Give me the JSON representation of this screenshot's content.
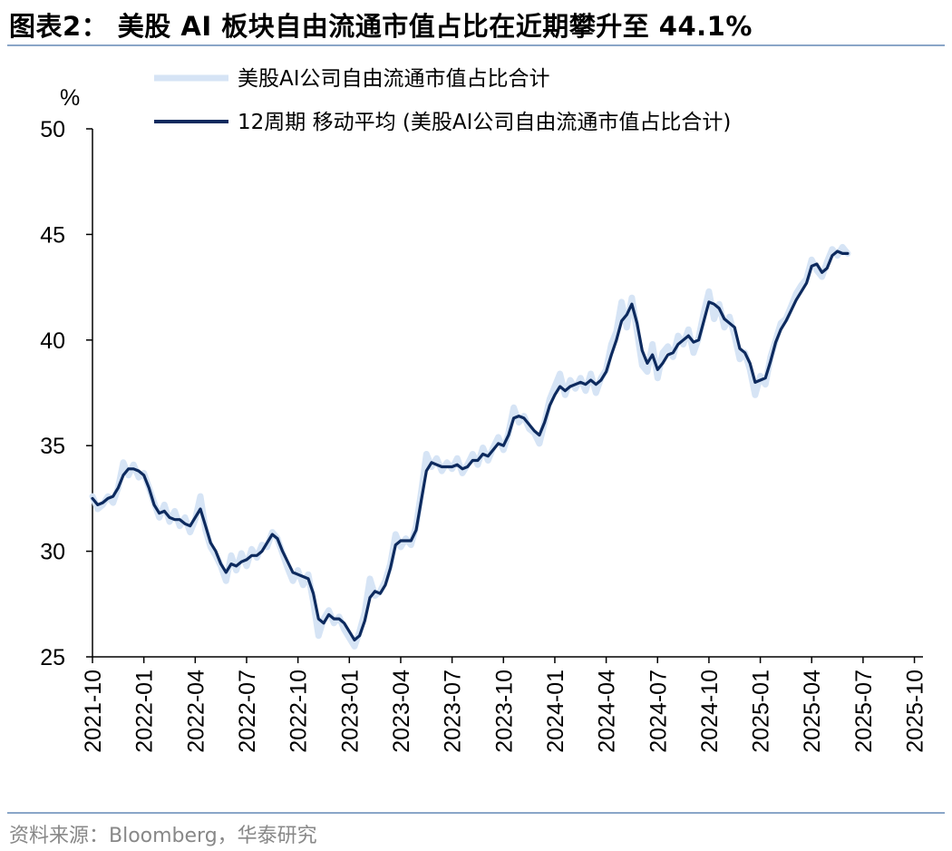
{
  "header": {
    "title": "图表2：  美股 AI 板块自由流通市值占比在近期攀升至 44.1%"
  },
  "footer": {
    "source": "资料来源：Bloomberg，华泰研究"
  },
  "chart_data": {
    "type": "line",
    "ylabel": "%",
    "ylim": [
      25,
      50
    ],
    "y_ticks": [
      "25",
      "30",
      "35",
      "40",
      "45",
      "50"
    ],
    "x_ticks": [
      "2021-10",
      "2022-01",
      "2022-04",
      "2022-07",
      "2022-10",
      "2023-01",
      "2023-04",
      "2023-07",
      "2023-10",
      "2024-01",
      "2024-04",
      "2024-07",
      "2024-10",
      "2025-01",
      "2025-04",
      "2025-07",
      "2025-10"
    ],
    "x_range_months": [
      0,
      48.5
    ],
    "series": [
      {
        "name": "美股AI公司自由流通市值占比合计",
        "color": "#d6e4f5",
        "values": [
          [
            0,
            32.6
          ],
          [
            0.3,
            32.0
          ],
          [
            0.6,
            32.2
          ],
          [
            0.9,
            32.6
          ],
          [
            1.2,
            32.3
          ],
          [
            1.5,
            33.0
          ],
          [
            1.8,
            34.2
          ],
          [
            2.1,
            33.6
          ],
          [
            2.4,
            34.1
          ],
          [
            2.7,
            33.5
          ],
          [
            3.0,
            33.7
          ],
          [
            3.3,
            33.0
          ],
          [
            3.6,
            32.3
          ],
          [
            3.9,
            31.6
          ],
          [
            4.2,
            32.2
          ],
          [
            4.5,
            31.4
          ],
          [
            4.8,
            31.9
          ],
          [
            5.1,
            31.2
          ],
          [
            5.4,
            31.6
          ],
          [
            5.7,
            30.9
          ],
          [
            6.0,
            31.5
          ],
          [
            6.3,
            32.6
          ],
          [
            6.6,
            31.0
          ],
          [
            6.9,
            30.2
          ],
          [
            7.2,
            29.8
          ],
          [
            7.5,
            29.3
          ],
          [
            7.8,
            28.6
          ],
          [
            8.1,
            29.8
          ],
          [
            8.4,
            29.1
          ],
          [
            8.7,
            29.9
          ],
          [
            9.0,
            29.3
          ],
          [
            9.3,
            30.1
          ],
          [
            9.6,
            29.7
          ],
          [
            9.9,
            30.3
          ],
          [
            10.2,
            30.2
          ],
          [
            10.5,
            30.9
          ],
          [
            10.8,
            30.6
          ],
          [
            11.1,
            29.9
          ],
          [
            11.4,
            29.2
          ],
          [
            11.7,
            28.6
          ],
          [
            12.0,
            29.1
          ],
          [
            12.3,
            28.4
          ],
          [
            12.6,
            28.9
          ],
          [
            12.9,
            27.6
          ],
          [
            13.2,
            26.0
          ],
          [
            13.5,
            26.8
          ],
          [
            13.8,
            27.2
          ],
          [
            14.1,
            26.6
          ],
          [
            14.4,
            26.9
          ],
          [
            14.7,
            26.3
          ],
          [
            15.0,
            25.9
          ],
          [
            15.3,
            25.5
          ],
          [
            15.6,
            26.2
          ],
          [
            15.9,
            27.1
          ],
          [
            16.2,
            28.7
          ],
          [
            16.5,
            27.9
          ],
          [
            16.8,
            28.1
          ],
          [
            17.1,
            28.6
          ],
          [
            17.4,
            29.4
          ],
          [
            17.7,
            30.8
          ],
          [
            18.0,
            30.2
          ],
          [
            18.3,
            30.6
          ],
          [
            18.6,
            30.3
          ],
          [
            18.9,
            31.2
          ],
          [
            19.2,
            32.8
          ],
          [
            19.5,
            34.6
          ],
          [
            19.8,
            34.0
          ],
          [
            20.1,
            34.4
          ],
          [
            20.4,
            33.8
          ],
          [
            20.7,
            34.2
          ],
          [
            21.0,
            33.9
          ],
          [
            21.3,
            34.4
          ],
          [
            21.6,
            33.7
          ],
          [
            21.9,
            34.1
          ],
          [
            22.2,
            34.6
          ],
          [
            22.5,
            34.1
          ],
          [
            22.8,
            34.9
          ],
          [
            23.1,
            34.3
          ],
          [
            23.4,
            34.9
          ],
          [
            23.7,
            35.4
          ],
          [
            24.0,
            34.8
          ],
          [
            24.3,
            35.6
          ],
          [
            24.6,
            36.8
          ],
          [
            24.9,
            36.1
          ],
          [
            25.2,
            36.4
          ],
          [
            25.5,
            35.8
          ],
          [
            25.8,
            35.6
          ],
          [
            26.1,
            35.1
          ],
          [
            26.4,
            36.1
          ],
          [
            26.7,
            37.2
          ],
          [
            27.0,
            37.8
          ],
          [
            27.3,
            38.4
          ],
          [
            27.6,
            37.4
          ],
          [
            27.9,
            38.1
          ],
          [
            28.2,
            37.7
          ],
          [
            28.5,
            38.2
          ],
          [
            28.8,
            37.6
          ],
          [
            29.1,
            38.4
          ],
          [
            29.4,
            37.5
          ],
          [
            29.7,
            38.2
          ],
          [
            30.0,
            38.6
          ],
          [
            30.3,
            39.8
          ],
          [
            30.6,
            40.4
          ],
          [
            30.9,
            41.8
          ],
          [
            31.2,
            40.6
          ],
          [
            31.5,
            42.0
          ],
          [
            31.8,
            40.4
          ],
          [
            32.1,
            38.8
          ],
          [
            32.4,
            38.5
          ],
          [
            32.7,
            39.8
          ],
          [
            33.0,
            38.2
          ],
          [
            33.3,
            39.4
          ],
          [
            33.6,
            39.7
          ],
          [
            33.9,
            39.2
          ],
          [
            34.2,
            40.2
          ],
          [
            34.5,
            39.8
          ],
          [
            34.8,
            40.5
          ],
          [
            35.1,
            39.4
          ],
          [
            35.4,
            40.1
          ],
          [
            35.7,
            41.3
          ],
          [
            36.0,
            42.3
          ],
          [
            36.3,
            41.0
          ],
          [
            36.6,
            41.7
          ],
          [
            36.9,
            40.6
          ],
          [
            37.2,
            41.1
          ],
          [
            37.5,
            40.2
          ],
          [
            37.8,
            39.1
          ],
          [
            38.1,
            39.4
          ],
          [
            38.4,
            38.6
          ],
          [
            38.7,
            37.4
          ],
          [
            39.0,
            38.3
          ],
          [
            39.3,
            37.9
          ],
          [
            39.6,
            39.2
          ],
          [
            39.9,
            40.0
          ],
          [
            40.2,
            40.8
          ],
          [
            40.5,
            41.0
          ],
          [
            40.8,
            41.6
          ],
          [
            41.1,
            42.2
          ],
          [
            41.4,
            42.6
          ],
          [
            41.7,
            42.9
          ],
          [
            42.0,
            43.8
          ],
          [
            42.3,
            43.3
          ],
          [
            42.6,
            43.0
          ],
          [
            42.9,
            43.7
          ],
          [
            43.2,
            44.3
          ],
          [
            43.5,
            44.0
          ],
          [
            43.8,
            44.4
          ],
          [
            44.1,
            44.1
          ]
        ]
      },
      {
        "name": "12周期 移动平均 (美股AI公司自由流通市值占比合计)",
        "color": "#0d2a5e",
        "values": [
          [
            0,
            32.5
          ],
          [
            0.3,
            32.2
          ],
          [
            0.6,
            32.3
          ],
          [
            0.9,
            32.5
          ],
          [
            1.2,
            32.6
          ],
          [
            1.5,
            33.0
          ],
          [
            1.8,
            33.6
          ],
          [
            2.1,
            33.9
          ],
          [
            2.4,
            33.9
          ],
          [
            2.7,
            33.8
          ],
          [
            3.0,
            33.6
          ],
          [
            3.3,
            33.0
          ],
          [
            3.6,
            32.2
          ],
          [
            3.9,
            31.8
          ],
          [
            4.2,
            31.9
          ],
          [
            4.5,
            31.6
          ],
          [
            4.8,
            31.5
          ],
          [
            5.1,
            31.5
          ],
          [
            5.4,
            31.3
          ],
          [
            5.7,
            31.2
          ],
          [
            6.0,
            31.6
          ],
          [
            6.3,
            32.0
          ],
          [
            6.6,
            31.2
          ],
          [
            6.9,
            30.4
          ],
          [
            7.2,
            30.0
          ],
          [
            7.5,
            29.4
          ],
          [
            7.8,
            29.0
          ],
          [
            8.1,
            29.4
          ],
          [
            8.4,
            29.3
          ],
          [
            8.7,
            29.5
          ],
          [
            9.0,
            29.6
          ],
          [
            9.3,
            29.8
          ],
          [
            9.6,
            29.8
          ],
          [
            9.9,
            30.0
          ],
          [
            10.2,
            30.4
          ],
          [
            10.5,
            30.8
          ],
          [
            10.8,
            30.6
          ],
          [
            11.1,
            30.0
          ],
          [
            11.4,
            29.5
          ],
          [
            11.7,
            29.0
          ],
          [
            12.0,
            28.9
          ],
          [
            12.3,
            28.8
          ],
          [
            12.6,
            28.7
          ],
          [
            12.9,
            28.0
          ],
          [
            13.2,
            26.8
          ],
          [
            13.5,
            26.6
          ],
          [
            13.8,
            27.0
          ],
          [
            14.1,
            26.8
          ],
          [
            14.4,
            26.8
          ],
          [
            14.7,
            26.6
          ],
          [
            15.0,
            26.2
          ],
          [
            15.3,
            25.8
          ],
          [
            15.6,
            26.0
          ],
          [
            15.9,
            26.7
          ],
          [
            16.2,
            27.8
          ],
          [
            16.5,
            28.1
          ],
          [
            16.8,
            28.0
          ],
          [
            17.1,
            28.4
          ],
          [
            17.4,
            29.2
          ],
          [
            17.7,
            30.3
          ],
          [
            18.0,
            30.5
          ],
          [
            18.3,
            30.5
          ],
          [
            18.6,
            30.5
          ],
          [
            18.9,
            31.0
          ],
          [
            19.2,
            32.4
          ],
          [
            19.5,
            33.8
          ],
          [
            19.8,
            34.2
          ],
          [
            20.1,
            34.1
          ],
          [
            20.4,
            34.0
          ],
          [
            20.7,
            34.0
          ],
          [
            21.0,
            34.0
          ],
          [
            21.3,
            34.1
          ],
          [
            21.6,
            33.9
          ],
          [
            21.9,
            34.0
          ],
          [
            22.2,
            34.3
          ],
          [
            22.5,
            34.3
          ],
          [
            22.8,
            34.6
          ],
          [
            23.1,
            34.5
          ],
          [
            23.4,
            34.8
          ],
          [
            23.7,
            35.1
          ],
          [
            24.0,
            35.0
          ],
          [
            24.3,
            35.5
          ],
          [
            24.6,
            36.3
          ],
          [
            24.9,
            36.4
          ],
          [
            25.2,
            36.3
          ],
          [
            25.5,
            36.0
          ],
          [
            25.8,
            35.7
          ],
          [
            26.1,
            35.5
          ],
          [
            26.4,
            36.1
          ],
          [
            26.7,
            36.9
          ],
          [
            27.0,
            37.4
          ],
          [
            27.3,
            37.8
          ],
          [
            27.6,
            37.6
          ],
          [
            27.9,
            37.8
          ],
          [
            28.2,
            37.9
          ],
          [
            28.5,
            38.0
          ],
          [
            28.8,
            37.9
          ],
          [
            29.1,
            38.1
          ],
          [
            29.4,
            37.9
          ],
          [
            29.7,
            38.1
          ],
          [
            30.0,
            38.5
          ],
          [
            30.3,
            39.3
          ],
          [
            30.6,
            40.0
          ],
          [
            30.9,
            40.9
          ],
          [
            31.2,
            41.2
          ],
          [
            31.5,
            41.7
          ],
          [
            31.8,
            40.8
          ],
          [
            32.1,
            39.5
          ],
          [
            32.4,
            38.9
          ],
          [
            32.7,
            39.3
          ],
          [
            33.0,
            38.6
          ],
          [
            33.3,
            38.9
          ],
          [
            33.6,
            39.3
          ],
          [
            33.9,
            39.4
          ],
          [
            34.2,
            39.8
          ],
          [
            34.5,
            40.0
          ],
          [
            34.8,
            40.2
          ],
          [
            35.1,
            39.9
          ],
          [
            35.4,
            40.0
          ],
          [
            35.7,
            40.9
          ],
          [
            36.0,
            41.8
          ],
          [
            36.3,
            41.7
          ],
          [
            36.6,
            41.5
          ],
          [
            36.9,
            41.0
          ],
          [
            37.2,
            40.8
          ],
          [
            37.5,
            40.6
          ],
          [
            37.8,
            39.6
          ],
          [
            38.1,
            39.4
          ],
          [
            38.4,
            38.9
          ],
          [
            38.7,
            38.0
          ],
          [
            39.0,
            38.1
          ],
          [
            39.3,
            38.2
          ],
          [
            39.6,
            39.0
          ],
          [
            39.9,
            39.9
          ],
          [
            40.2,
            40.5
          ],
          [
            40.5,
            40.9
          ],
          [
            40.8,
            41.4
          ],
          [
            41.1,
            41.9
          ],
          [
            41.4,
            42.3
          ],
          [
            41.7,
            42.7
          ],
          [
            42.0,
            43.5
          ],
          [
            42.3,
            43.6
          ],
          [
            42.6,
            43.2
          ],
          [
            42.9,
            43.4
          ],
          [
            43.2,
            44.0
          ],
          [
            43.5,
            44.2
          ],
          [
            43.8,
            44.1
          ],
          [
            44.1,
            44.1
          ]
        ]
      }
    ]
  }
}
